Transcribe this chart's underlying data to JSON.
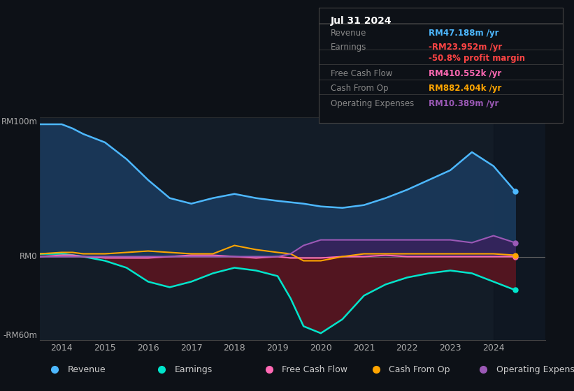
{
  "bg_color": "#0d1117",
  "chart_bg": "#131c27",
  "title": "Jul 31 2024",
  "ylim": [
    -60,
    100
  ],
  "xlim": [
    2013.5,
    2025.2
  ],
  "xticks": [
    2014,
    2015,
    2016,
    2017,
    2018,
    2019,
    2020,
    2021,
    2022,
    2023,
    2024
  ],
  "revenue_color": "#4db8ff",
  "earnings_color": "#00e5cc",
  "fcf_color": "#ff69b4",
  "cashop_color": "#ffa500",
  "opex_color": "#9b59b6",
  "revenue_fill": "#1a3a5c",
  "earnings_fill_neg": "#5a1520",
  "opex_fill": "#3d1f5e",
  "legend_items": [
    {
      "label": "Revenue",
      "color": "#4db8ff"
    },
    {
      "label": "Earnings",
      "color": "#00e5cc"
    },
    {
      "label": "Free Cash Flow",
      "color": "#ff69b4"
    },
    {
      "label": "Cash From Op",
      "color": "#ffa500"
    },
    {
      "label": "Operating Expenses",
      "color": "#9b59b6"
    }
  ],
  "years": [
    2013.5,
    2014.0,
    2014.25,
    2014.5,
    2015.0,
    2015.5,
    2016.0,
    2016.5,
    2017.0,
    2017.5,
    2018.0,
    2018.5,
    2019.0,
    2019.3,
    2019.6,
    2020.0,
    2020.5,
    2021.0,
    2021.5,
    2022.0,
    2022.5,
    2023.0,
    2023.5,
    2024.0,
    2024.5
  ],
  "revenue": [
    95,
    95,
    92,
    88,
    82,
    70,
    55,
    42,
    38,
    42,
    45,
    42,
    40,
    39,
    38,
    36,
    35,
    37,
    42,
    48,
    55,
    62,
    75,
    65,
    47
  ],
  "earnings": [
    2,
    2,
    1,
    0,
    -3,
    -8,
    -18,
    -22,
    -18,
    -12,
    -8,
    -10,
    -14,
    -30,
    -50,
    -55,
    -45,
    -28,
    -20,
    -15,
    -12,
    -10,
    -12,
    -18,
    -24
  ],
  "fcf": [
    0,
    1,
    1,
    0,
    -1,
    -1,
    -1,
    0,
    1,
    1,
    0,
    -1,
    0,
    -1,
    -1,
    -1,
    0,
    0,
    1,
    0,
    0,
    0,
    0,
    0,
    0
  ],
  "cashop": [
    2,
    3,
    3,
    2,
    2,
    3,
    4,
    3,
    2,
    2,
    8,
    5,
    3,
    2,
    -3,
    -3,
    0,
    2,
    2,
    2,
    2,
    2,
    2,
    2,
    1
  ],
  "opex": [
    0,
    0,
    0,
    0,
    0,
    0,
    0,
    0,
    0,
    0,
    0,
    0,
    0,
    2,
    8,
    12,
    12,
    12,
    12,
    12,
    12,
    12,
    10,
    15,
    10
  ],
  "panel": {
    "title": "Jul 31 2024",
    "title_color": "#ffffff",
    "rows": [
      {
        "label": "Revenue",
        "label_color": "#888888",
        "value": "RM47.188m /yr",
        "value_color": "#4db8ff"
      },
      {
        "label": "Earnings",
        "label_color": "#888888",
        "value": "-RM23.952m /yr",
        "value_color": "#ff4444"
      },
      {
        "label": "",
        "label_color": "#888888",
        "value": "-50.8% profit margin",
        "value_color": "#ff4444"
      },
      {
        "label": "Free Cash Flow",
        "label_color": "#888888",
        "value": "RM410.552k /yr",
        "value_color": "#ff69b4"
      },
      {
        "label": "Cash From Op",
        "label_color": "#888888",
        "value": "RM882.404k /yr",
        "value_color": "#ffa500"
      },
      {
        "label": "Operating Expenses",
        "label_color": "#888888",
        "value": "RM10.389m /yr",
        "value_color": "#9b59b6"
      }
    ]
  }
}
